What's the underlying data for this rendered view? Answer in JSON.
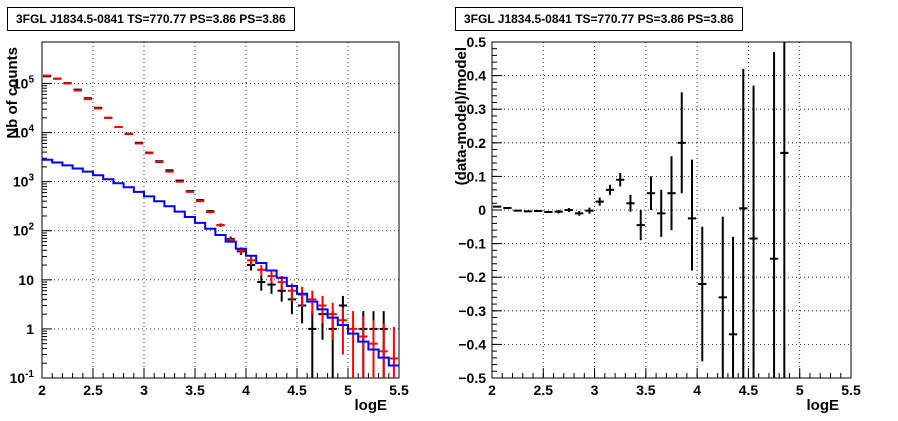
{
  "chart_data": [
    {
      "type": "scatter",
      "title": "3FGL J1834.5-0841 TS=770.77 PS=3.86 PS=3.86",
      "xlabel": "logE",
      "ylabel": "Nb of counts",
      "xlim": [
        2,
        5.5
      ],
      "ylim": [
        0.1,
        700000
      ],
      "yscale": "log",
      "grid": true,
      "x_ticks": [
        "2",
        "2.5",
        "3",
        "3.5",
        "4",
        "4.5",
        "5",
        "5.5"
      ],
      "y_ticks": [
        "10⁻¹",
        "1",
        "10",
        "10²",
        "10³",
        "10⁴",
        "10⁵"
      ],
      "bin_width": 0.1,
      "series": [
        {
          "color": "#000000",
          "style": "errorbars",
          "points": [
            {
              "x": 2.05,
              "y": 140000,
              "lo": 139600,
              "hi": 140400
            },
            {
              "x": 2.15,
              "y": 125000,
              "lo": 124600,
              "hi": 125400
            },
            {
              "x": 2.25,
              "y": 102000,
              "lo": 101700,
              "hi": 102300
            },
            {
              "x": 2.35,
              "y": 75000,
              "lo": 74700,
              "hi": 75300
            },
            {
              "x": 2.45,
              "y": 50000,
              "lo": 49800,
              "hi": 50200
            },
            {
              "x": 2.55,
              "y": 32000,
              "lo": 31800,
              "hi": 32200
            },
            {
              "x": 2.65,
              "y": 20000,
              "lo": 19860,
              "hi": 20140
            },
            {
              "x": 2.75,
              "y": 13000,
              "lo": 12890,
              "hi": 13110
            },
            {
              "x": 2.85,
              "y": 9500,
              "lo": 9400,
              "hi": 9600
            },
            {
              "x": 2.95,
              "y": 6200,
              "lo": 6120,
              "hi": 6280
            },
            {
              "x": 3.05,
              "y": 3900,
              "lo": 3840,
              "hi": 3960
            },
            {
              "x": 3.15,
              "y": 2600,
              "lo": 2550,
              "hi": 2650
            },
            {
              "x": 3.25,
              "y": 1700,
              "lo": 1660,
              "hi": 1740
            },
            {
              "x": 3.35,
              "y": 1050,
              "lo": 1020,
              "hi": 1080
            },
            {
              "x": 3.45,
              "y": 640,
              "lo": 615,
              "hi": 665
            },
            {
              "x": 3.55,
              "y": 420,
              "lo": 400,
              "hi": 440
            },
            {
              "x": 3.65,
              "y": 250,
              "lo": 235,
              "hi": 265
            },
            {
              "x": 3.75,
              "y": 130,
              "lo": 119,
              "hi": 141
            },
            {
              "x": 3.85,
              "y": 68,
              "lo": 60,
              "hi": 76
            },
            {
              "x": 3.95,
              "y": 38,
              "lo": 32,
              "hi": 44
            },
            {
              "x": 4.05,
              "y": 20,
              "lo": 15.5,
              "hi": 24.5
            },
            {
              "x": 4.15,
              "y": 9,
              "lo": 6,
              "hi": 12
            },
            {
              "x": 4.25,
              "y": 8,
              "lo": 5.2,
              "hi": 10.8
            },
            {
              "x": 4.35,
              "y": 6,
              "lo": 3.6,
              "hi": 8.4
            },
            {
              "x": 4.45,
              "y": 4,
              "lo": 2,
              "hi": 6
            },
            {
              "x": 4.55,
              "y": 3,
              "lo": 1.3,
              "hi": 4.7
            },
            {
              "x": 4.65,
              "y": 1,
              "lo": 0.1,
              "hi": 2.3
            },
            {
              "x": 4.75,
              "y": 2,
              "lo": 0.6,
              "hi": 3.4
            },
            {
              "x": 4.85,
              "y": 1,
              "lo": 0.1,
              "hi": 2.3
            },
            {
              "x": 4.95,
              "y": 3,
              "lo": 1.3,
              "hi": 4.7
            },
            {
              "x": 5.15,
              "y": 1,
              "lo": 0.1,
              "hi": 2.3
            },
            {
              "x": 5.25,
              "y": 1,
              "lo": 0.1,
              "hi": 2.3
            },
            {
              "x": 5.35,
              "y": 1,
              "lo": 0.1,
              "hi": 2.3
            }
          ]
        },
        {
          "color": "#ff0000",
          "style": "errorbars",
          "points": [
            {
              "x": 2.05,
              "y": 145000,
              "lo": 144600,
              "hi": 145400
            },
            {
              "x": 2.15,
              "y": 126000,
              "lo": 125600,
              "hi": 126400
            },
            {
              "x": 2.25,
              "y": 100000,
              "lo": 99700,
              "hi": 100300
            },
            {
              "x": 2.35,
              "y": 72000,
              "lo": 71700,
              "hi": 72300
            },
            {
              "x": 2.45,
              "y": 48000,
              "lo": 47800,
              "hi": 48200
            },
            {
              "x": 2.55,
              "y": 31000,
              "lo": 30800,
              "hi": 31200
            },
            {
              "x": 2.65,
              "y": 20000,
              "lo": 19860,
              "hi": 20140
            },
            {
              "x": 2.75,
              "y": 13000,
              "lo": 12890,
              "hi": 13110
            },
            {
              "x": 2.85,
              "y": 9300,
              "lo": 9200,
              "hi": 9400
            },
            {
              "x": 2.95,
              "y": 6000,
              "lo": 5920,
              "hi": 6080
            },
            {
              "x": 3.05,
              "y": 3800,
              "lo": 3740,
              "hi": 3860
            },
            {
              "x": 3.15,
              "y": 2500,
              "lo": 2450,
              "hi": 2550
            },
            {
              "x": 3.25,
              "y": 1600,
              "lo": 1560,
              "hi": 1640
            },
            {
              "x": 3.35,
              "y": 1000,
              "lo": 970,
              "hi": 1030
            },
            {
              "x": 3.45,
              "y": 620,
              "lo": 595,
              "hi": 645
            },
            {
              "x": 3.55,
              "y": 400,
              "lo": 380,
              "hi": 420
            },
            {
              "x": 3.65,
              "y": 240,
              "lo": 225,
              "hi": 255
            },
            {
              "x": 3.75,
              "y": 130,
              "lo": 119,
              "hi": 141
            },
            {
              "x": 3.85,
              "y": 65,
              "lo": 57,
              "hi": 73
            },
            {
              "x": 3.95,
              "y": 40,
              "lo": 34,
              "hi": 46
            },
            {
              "x": 4.05,
              "y": 25,
              "lo": 20,
              "hi": 30
            },
            {
              "x": 4.15,
              "y": 16,
              "lo": 12,
              "hi": 20
            },
            {
              "x": 4.25,
              "y": 12,
              "lo": 8.5,
              "hi": 15.5
            },
            {
              "x": 4.35,
              "y": 9,
              "lo": 6,
              "hi": 12
            },
            {
              "x": 4.45,
              "y": 6,
              "lo": 3.6,
              "hi": 8.4
            },
            {
              "x": 4.55,
              "y": 5,
              "lo": 2.8,
              "hi": 7.2
            },
            {
              "x": 4.65,
              "y": 4,
              "lo": 2,
              "hi": 6
            },
            {
              "x": 4.75,
              "y": 3,
              "lo": 1.3,
              "hi": 4.7
            },
            {
              "x": 4.85,
              "y": 2,
              "lo": 0.6,
              "hi": 3.4
            },
            {
              "x": 4.95,
              "y": 1.5,
              "lo": 0.3,
              "hi": 2.7
            },
            {
              "x": 5.05,
              "y": 1,
              "lo": 0.1,
              "hi": 2.3
            },
            {
              "x": 5.15,
              "y": 0.7,
              "lo": 0.1,
              "hi": 1.8
            },
            {
              "x": 5.25,
              "y": 0.5,
              "lo": 0.1,
              "hi": 1.5
            },
            {
              "x": 5.35,
              "y": 0.35,
              "lo": 0.1,
              "hi": 1.3
            },
            {
              "x": 5.45,
              "y": 0.25,
              "lo": 0.1,
              "hi": 1.1
            }
          ]
        },
        {
          "color": "#0000ff",
          "style": "step",
          "points": [
            {
              "x": 2.05,
              "y": 2800
            },
            {
              "x": 2.15,
              "y": 2450
            },
            {
              "x": 2.25,
              "y": 2150
            },
            {
              "x": 2.35,
              "y": 1850
            },
            {
              "x": 2.45,
              "y": 1600
            },
            {
              "x": 2.55,
              "y": 1350
            },
            {
              "x": 2.65,
              "y": 1120
            },
            {
              "x": 2.75,
              "y": 930
            },
            {
              "x": 2.85,
              "y": 770
            },
            {
              "x": 2.95,
              "y": 620
            },
            {
              "x": 3.05,
              "y": 500
            },
            {
              "x": 3.15,
              "y": 400
            },
            {
              "x": 3.25,
              "y": 315
            },
            {
              "x": 3.35,
              "y": 245
            },
            {
              "x": 3.45,
              "y": 190
            },
            {
              "x": 3.55,
              "y": 145
            },
            {
              "x": 3.65,
              "y": 110
            },
            {
              "x": 3.75,
              "y": 82
            },
            {
              "x": 3.85,
              "y": 60
            },
            {
              "x": 3.95,
              "y": 43
            },
            {
              "x": 4.05,
              "y": 31
            },
            {
              "x": 4.15,
              "y": 22
            },
            {
              "x": 4.25,
              "y": 15.5
            },
            {
              "x": 4.35,
              "y": 11
            },
            {
              "x": 4.45,
              "y": 7.5
            },
            {
              "x": 4.55,
              "y": 5.2
            },
            {
              "x": 4.65,
              "y": 3.6
            },
            {
              "x": 4.75,
              "y": 2.5
            },
            {
              "x": 4.85,
              "y": 1.7
            },
            {
              "x": 4.95,
              "y": 1.2
            },
            {
              "x": 5.05,
              "y": 0.8
            },
            {
              "x": 5.15,
              "y": 0.55
            },
            {
              "x": 5.25,
              "y": 0.38
            },
            {
              "x": 5.35,
              "y": 0.26
            },
            {
              "x": 5.45,
              "y": 0.18
            }
          ]
        }
      ]
    },
    {
      "type": "scatter",
      "title": "3FGL J1834.5-0841 TS=770.77 PS=3.86 PS=3.86",
      "xlabel": "logE",
      "ylabel": "(data-model)/model",
      "xlim": [
        2,
        5.5
      ],
      "ylim": [
        -0.5,
        0.5
      ],
      "yscale": "linear",
      "grid": true,
      "x_ticks": [
        "2",
        "2.5",
        "3",
        "3.5",
        "4",
        "4.5",
        "5",
        "5.5"
      ],
      "y_ticks": [
        "−0.5",
        "−0.4",
        "−0.3",
        "−0.2",
        "−0.1",
        "0",
        "0.1",
        "0.2",
        "0.3",
        "0.4",
        "0.5"
      ],
      "bin_width": 0.1,
      "series": [
        {
          "color": "#000000",
          "style": "errorbars",
          "points": [
            {
              "x": 2.05,
              "y": 0.01,
              "lo": 0.008,
              "hi": 0.012
            },
            {
              "x": 2.15,
              "y": 0.006,
              "lo": 0.004,
              "hi": 0.008
            },
            {
              "x": 2.25,
              "y": -0.002,
              "lo": -0.004,
              "hi": 0.0
            },
            {
              "x": 2.35,
              "y": -0.004,
              "lo": -0.006,
              "hi": -0.002
            },
            {
              "x": 2.45,
              "y": -0.003,
              "lo": -0.006,
              "hi": 0.0
            },
            {
              "x": 2.55,
              "y": -0.006,
              "lo": -0.009,
              "hi": -0.003
            },
            {
              "x": 2.65,
              "y": -0.005,
              "lo": -0.01,
              "hi": 0.0
            },
            {
              "x": 2.75,
              "y": 0.0,
              "lo": -0.006,
              "hi": 0.006
            },
            {
              "x": 2.85,
              "y": -0.01,
              "lo": -0.017,
              "hi": -0.003
            },
            {
              "x": 2.95,
              "y": -0.002,
              "lo": -0.011,
              "hi": 0.007
            },
            {
              "x": 3.05,
              "y": 0.025,
              "lo": 0.013,
              "hi": 0.037
            },
            {
              "x": 3.15,
              "y": 0.06,
              "lo": 0.045,
              "hi": 0.075
            },
            {
              "x": 3.25,
              "y": 0.09,
              "lo": 0.07,
              "hi": 0.11
            },
            {
              "x": 3.35,
              "y": 0.02,
              "lo": -0.005,
              "hi": 0.045
            },
            {
              "x": 3.45,
              "y": -0.045,
              "lo": -0.09,
              "hi": 0.0
            },
            {
              "x": 3.55,
              "y": 0.05,
              "lo": 0.0,
              "hi": 0.1
            },
            {
              "x": 3.65,
              "y": -0.01,
              "lo": -0.08,
              "hi": 0.06
            },
            {
              "x": 3.75,
              "y": 0.05,
              "lo": -0.06,
              "hi": 0.16
            },
            {
              "x": 3.85,
              "y": 0.2,
              "lo": 0.05,
              "hi": 0.35
            },
            {
              "x": 3.95,
              "y": -0.025,
              "lo": -0.18,
              "hi": 0.15
            },
            {
              "x": 4.05,
              "y": -0.22,
              "lo": -0.45,
              "hi": -0.05
            },
            {
              "x": 4.25,
              "y": -0.26,
              "lo": -0.5,
              "hi": -0.02
            },
            {
              "x": 4.35,
              "y": -0.37,
              "lo": -0.5,
              "hi": -0.08
            },
            {
              "x": 4.45,
              "y": 0.005,
              "lo": -0.5,
              "hi": 0.42
            },
            {
              "x": 4.55,
              "y": -0.085,
              "lo": -0.5,
              "hi": 0.37
            },
            {
              "x": 4.75,
              "y": -0.145,
              "lo": -0.5,
              "hi": 0.47
            },
            {
              "x": 4.85,
              "y": 0.17,
              "lo": -0.5,
              "hi": 0.5
            }
          ]
        }
      ]
    }
  ]
}
